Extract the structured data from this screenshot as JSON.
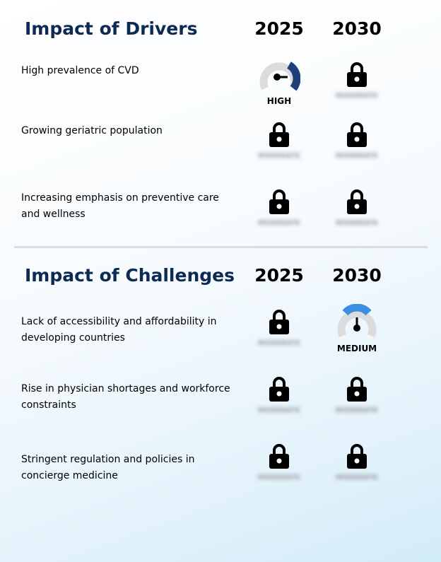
{
  "drivers": {
    "title": "Impact of Drivers",
    "year_1": "2025",
    "year_2": "2030",
    "rows": [
      {
        "label": "High prevalence of CVD",
        "y2025": {
          "type": "gauge",
          "level": "HIGH",
          "color": "#1f3f7a"
        },
        "y2030": {
          "type": "lock",
          "hidden_text": "MODERATE"
        }
      },
      {
        "label": "Growing geriatric population",
        "y2025": {
          "type": "lock",
          "hidden_text": "MODERATE"
        },
        "y2030": {
          "type": "lock",
          "hidden_text": "MODERATE"
        }
      },
      {
        "label": "Increasing emphasis on preventive care and wellness",
        "y2025": {
          "type": "lock",
          "hidden_text": "MODERATE"
        },
        "y2030": {
          "type": "lock",
          "hidden_text": "MODERATE"
        }
      }
    ]
  },
  "challenges": {
    "title": "Impact of Challenges",
    "year_1": "2025",
    "year_2": "2030",
    "rows": [
      {
        "label": "Lack of accessibility and affordability in developing countries",
        "y2025": {
          "type": "lock",
          "hidden_text": "MODERATE"
        },
        "y2030": {
          "type": "gauge",
          "level": "MEDIUM",
          "color": "#3b8ee0"
        }
      },
      {
        "label": "Rise in physician shortages and workforce constraints",
        "y2025": {
          "type": "lock",
          "hidden_text": "MODERATE"
        },
        "y2030": {
          "type": "lock",
          "hidden_text": "MODERATE"
        }
      },
      {
        "label": "Stringent regulation and policies in concierge medicine",
        "y2025": {
          "type": "lock",
          "hidden_text": "MODERATE"
        },
        "y2030": {
          "type": "lock",
          "hidden_text": "MODERATE"
        }
      }
    ]
  },
  "colors": {
    "title": "#0d2a52",
    "gauge_track": "#dcdcdc"
  }
}
